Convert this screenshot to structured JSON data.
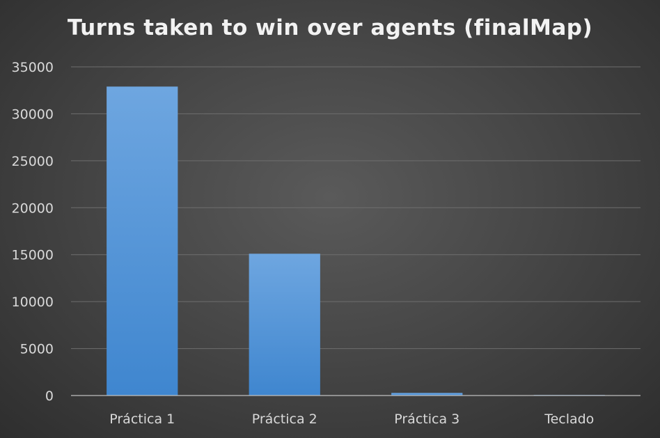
{
  "chart_data": {
    "type": "bar",
    "title": "Turns taken to win over agents (finalMap)",
    "xlabel": "",
    "ylabel": "",
    "categories": [
      "Práctica 1",
      "Práctica 2",
      "Práctica 3",
      "Teclado"
    ],
    "values": [
      32900,
      15100,
      280,
      60
    ],
    "ylim": [
      0,
      35000
    ],
    "yticks": [
      0,
      5000,
      10000,
      15000,
      20000,
      25000,
      30000,
      35000
    ],
    "grid": true,
    "legend": "none",
    "colors": {
      "bar_top": "#6ea6e0",
      "bar_bottom": "#3f86cf",
      "grid": "#6e6e6e",
      "axis": "#bfbfbf",
      "text": "#d9d9d9",
      "title": "#f2f2f2"
    }
  }
}
